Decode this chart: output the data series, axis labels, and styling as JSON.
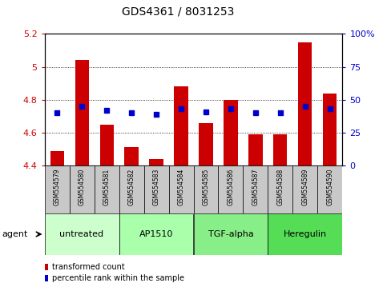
{
  "title": "GDS4361 / 8031253",
  "samples": [
    "GSM554579",
    "GSM554580",
    "GSM554581",
    "GSM554582",
    "GSM554583",
    "GSM554584",
    "GSM554585",
    "GSM554586",
    "GSM554587",
    "GSM554588",
    "GSM554589",
    "GSM554590"
  ],
  "red_values": [
    4.49,
    5.04,
    4.65,
    4.51,
    4.44,
    4.88,
    4.66,
    4.8,
    4.59,
    4.59,
    5.15,
    4.84
  ],
  "blue_percentiles": [
    40,
    45,
    42,
    40,
    39,
    43,
    41,
    43,
    40,
    40,
    45,
    43
  ],
  "ylim_left": [
    4.4,
    5.2
  ],
  "ylim_right": [
    0,
    100
  ],
  "yticks_left": [
    4.4,
    4.6,
    4.8,
    5.0,
    5.2
  ],
  "ytick_labels_left": [
    "4.4",
    "4.6",
    "4.8",
    "5",
    "5.2"
  ],
  "yticks_right": [
    0,
    25,
    50,
    75,
    100
  ],
  "ytick_labels_right": [
    "0",
    "25",
    "50",
    "75",
    "100%"
  ],
  "agent_groups": [
    {
      "label": "untreated",
      "indices": [
        0,
        1,
        2
      ],
      "color": "#ccffcc"
    },
    {
      "label": "AP1510",
      "indices": [
        3,
        4,
        5
      ],
      "color": "#aaffaa"
    },
    {
      "label": "TGF-alpha",
      "indices": [
        6,
        7,
        8
      ],
      "color": "#88ee88"
    },
    {
      "label": "Heregulin",
      "indices": [
        9,
        10,
        11
      ],
      "color": "#55dd55"
    }
  ],
  "bar_color": "#cc0000",
  "dot_color": "#0000cc",
  "background_plot": "#ffffff",
  "background_label": "#c8c8c8",
  "ybase": 4.4,
  "legend_items": [
    {
      "label": "transformed count",
      "color": "#cc0000"
    },
    {
      "label": "percentile rank within the sample",
      "color": "#0000cc"
    }
  ],
  "grid_dotted_ticks": [
    4.6,
    4.8,
    5.0
  ],
  "bar_width": 0.55,
  "title_fontsize": 10,
  "tick_fontsize": 8,
  "sample_fontsize": 5.5,
  "agent_fontsize": 8,
  "legend_fontsize": 7
}
